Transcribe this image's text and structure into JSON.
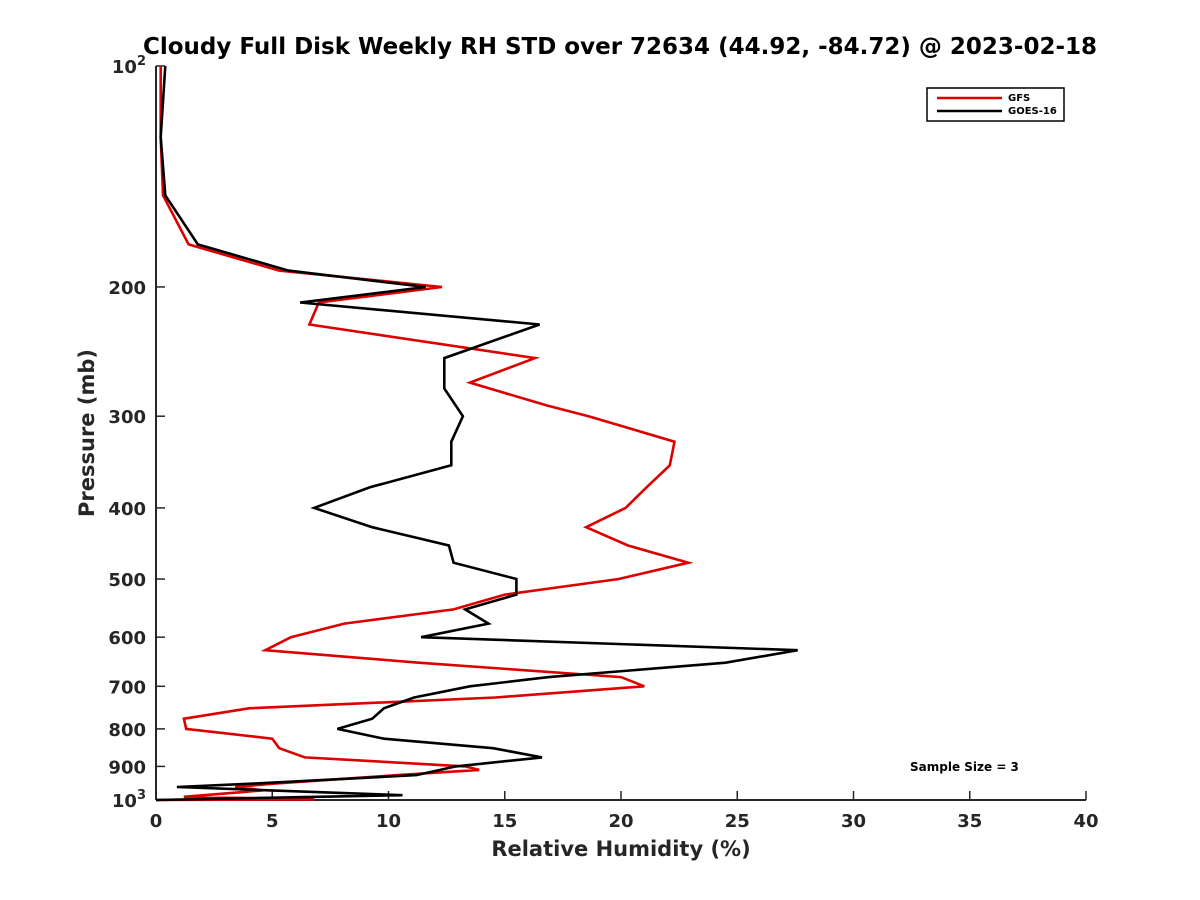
{
  "chart_data": {
    "type": "line",
    "title": "Cloudy Full Disk Weekly RH STD over 72634 (44.92, -84.72) @ 2023-02-18",
    "xlabel": "Relative Humidity (%)",
    "ylabel": "Pressure (mb)",
    "xlim": [
      0,
      40
    ],
    "ylim": [
      100,
      1000
    ],
    "y_scale": "log",
    "y_reversed": true,
    "grid": false,
    "legend_position": "top-right",
    "xticks": [
      "0",
      "5",
      "10",
      "15",
      "20",
      "25",
      "30",
      "35",
      "40"
    ],
    "yticks": [
      {
        "value": 100,
        "base": "10",
        "exp": "2"
      },
      {
        "value": 200,
        "label": "200"
      },
      {
        "value": 300,
        "label": "300"
      },
      {
        "value": 400,
        "label": "400"
      },
      {
        "value": 500,
        "label": "500"
      },
      {
        "value": 600,
        "label": "600"
      },
      {
        "value": 700,
        "label": "700"
      },
      {
        "value": 800,
        "label": "800"
      },
      {
        "value": 900,
        "label": "900"
      },
      {
        "value": 1000,
        "base": "10",
        "exp": "3"
      }
    ],
    "annotation": "Sample Size = 3",
    "series": [
      {
        "name": "GFS",
        "color": "#dd0000",
        "points": [
          [
            0.2,
            100
          ],
          [
            0.2,
            125
          ],
          [
            0.3,
            150
          ],
          [
            1.4,
            175
          ],
          [
            5.3,
            190
          ],
          [
            12.3,
            200
          ],
          [
            7.0,
            210
          ],
          [
            6.6,
            225
          ],
          [
            16.3,
            250
          ],
          [
            13.5,
            270
          ],
          [
            16.8,
            290
          ],
          [
            18.6,
            300
          ],
          [
            22.3,
            325
          ],
          [
            22.1,
            350
          ],
          [
            21.1,
            375
          ],
          [
            20.2,
            400
          ],
          [
            18.5,
            425
          ],
          [
            20.3,
            450
          ],
          [
            22.9,
            475
          ],
          [
            19.9,
            500
          ],
          [
            15.0,
            525
          ],
          [
            12.8,
            550
          ],
          [
            8.1,
            575
          ],
          [
            5.8,
            600
          ],
          [
            4.7,
            625
          ],
          [
            11.3,
            650
          ],
          [
            20.0,
            680
          ],
          [
            21.0,
            700
          ],
          [
            14.6,
            725
          ],
          [
            4.0,
            750
          ],
          [
            1.2,
            775
          ],
          [
            1.3,
            800
          ],
          [
            5.0,
            825
          ],
          [
            5.3,
            850
          ],
          [
            6.4,
            875
          ],
          [
            13.3,
            900
          ],
          [
            13.9,
            910
          ],
          [
            10.4,
            925
          ],
          [
            5.1,
            950
          ],
          [
            3.4,
            960
          ],
          [
            4.6,
            970
          ],
          [
            3.8,
            975
          ],
          [
            1.2,
            990
          ],
          [
            6.8,
            998
          ],
          [
            0,
            1000
          ]
        ]
      },
      {
        "name": "GOES-16",
        "color": "#000000",
        "points": [
          [
            0.4,
            100
          ],
          [
            0.2,
            125
          ],
          [
            0.4,
            150
          ],
          [
            1.8,
            175
          ],
          [
            5.7,
            190
          ],
          [
            11.6,
            200
          ],
          [
            6.2,
            210
          ],
          [
            16.5,
            225
          ],
          [
            12.4,
            250
          ],
          [
            12.4,
            275
          ],
          [
            13.2,
            300
          ],
          [
            12.7,
            325
          ],
          [
            12.7,
            350
          ],
          [
            9.2,
            375
          ],
          [
            6.8,
            400
          ],
          [
            9.3,
            425
          ],
          [
            12.6,
            450
          ],
          [
            12.8,
            475
          ],
          [
            15.5,
            500
          ],
          [
            15.5,
            525
          ],
          [
            13.3,
            550
          ],
          [
            14.3,
            575
          ],
          [
            11.4,
            600
          ],
          [
            27.6,
            625
          ],
          [
            24.5,
            650
          ],
          [
            16.9,
            680
          ],
          [
            13.5,
            700
          ],
          [
            11.1,
            725
          ],
          [
            9.8,
            750
          ],
          [
            9.3,
            775
          ],
          [
            7.8,
            800
          ],
          [
            9.8,
            825
          ],
          [
            14.5,
            850
          ],
          [
            16.6,
            875
          ],
          [
            12.9,
            900
          ],
          [
            11.2,
            925
          ],
          [
            4.2,
            950
          ],
          [
            0.9,
            960
          ],
          [
            10.6,
            985
          ],
          [
            0,
            1000
          ]
        ]
      }
    ]
  }
}
